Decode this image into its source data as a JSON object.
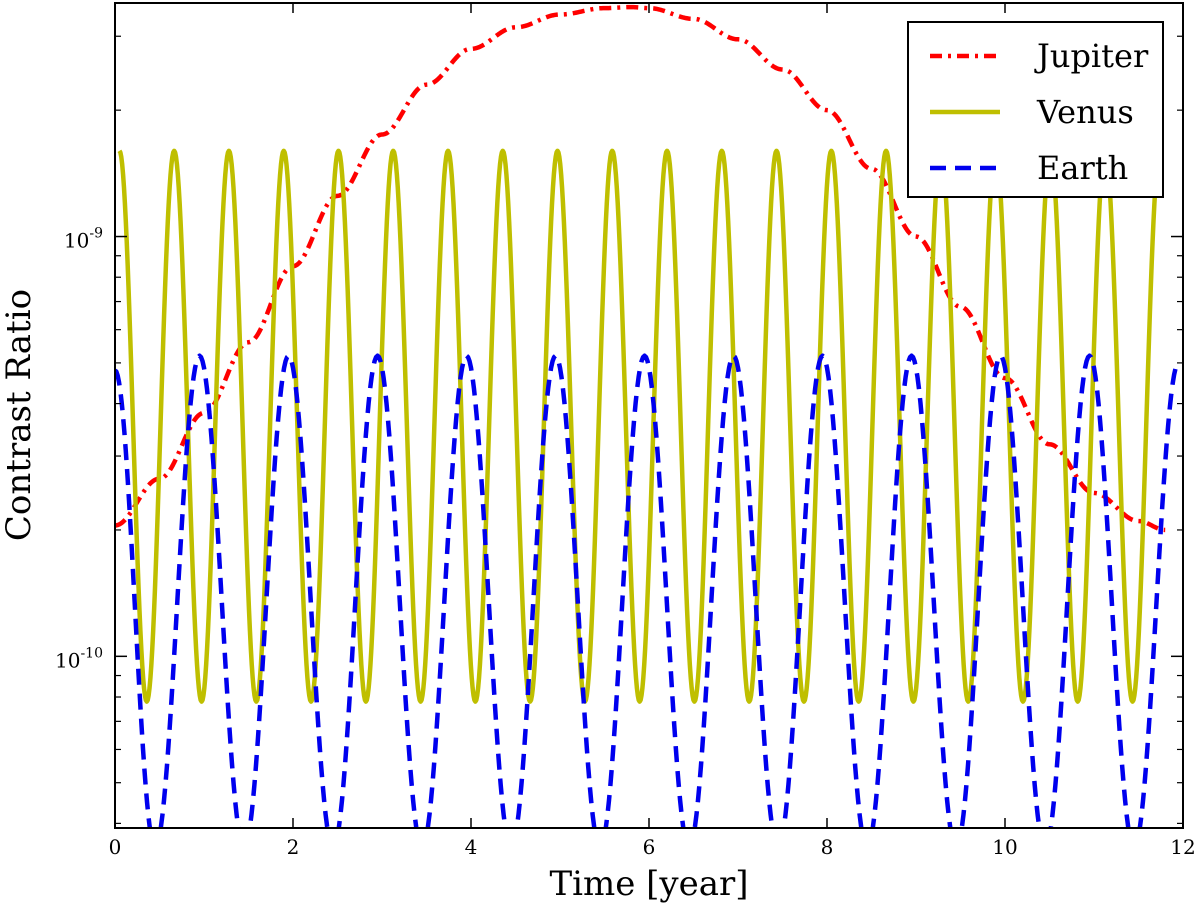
{
  "chart_data": {
    "type": "line",
    "title": "",
    "xlabel": "Time [year]",
    "ylabel": "Contrast Ratio",
    "xlim": [
      0,
      12
    ],
    "ylim": [
      3.9e-11,
      3.6e-09
    ],
    "yscale": "log",
    "grid": false,
    "legend_position": "top-right",
    "x_ticks": [
      {
        "value": 0,
        "label": "0"
      },
      {
        "value": 2,
        "label": "2"
      },
      {
        "value": 4,
        "label": "4"
      },
      {
        "value": 6,
        "label": "6"
      },
      {
        "value": 8,
        "label": "8"
      },
      {
        "value": 10,
        "label": "10"
      },
      {
        "value": 12,
        "label": "12"
      }
    ],
    "y_ticks": [
      {
        "value": 1e-09,
        "base": "10",
        "exponent": "-9"
      },
      {
        "value": 1e-10,
        "base": "10",
        "exponent": "-10"
      }
    ],
    "series": [
      {
        "name": "Jupiter",
        "color": "#ff0000",
        "style": "dash-dot",
        "x": [
          0,
          0.5,
          1,
          1.5,
          2,
          2.5,
          3,
          3.5,
          4,
          4.5,
          5,
          5.5,
          5.8,
          6,
          6.5,
          7,
          7.5,
          8,
          8.5,
          9,
          9.5,
          10,
          10.5,
          11,
          11.5,
          11.8
        ],
        "y": [
          2.05e-10,
          2.65e-10,
          3.8e-10,
          5.6e-10,
          8.5e-10,
          1.25e-09,
          1.75e-09,
          2.3e-09,
          2.8e-09,
          3.15e-09,
          3.38e-09,
          3.5e-09,
          3.52e-09,
          3.5e-09,
          3.3e-09,
          2.95e-09,
          2.5e-09,
          2e-09,
          1.45e-09,
          1e-09,
          6.8e-10,
          4.6e-10,
          3.2e-10,
          2.45e-10,
          2.1e-10,
          2e-10
        ]
      },
      {
        "name": "Venus",
        "color": "#bfbf00",
        "style": "solid",
        "x": [
          0.05,
          0.357,
          0.665,
          0.973,
          1.28,
          1.588,
          1.896,
          2.203,
          2.511,
          2.819,
          3.126,
          3.434,
          3.742,
          4.049,
          4.357,
          4.664,
          4.972,
          5.28,
          5.587,
          5.895,
          6.203,
          6.51,
          6.818,
          7.126,
          7.433,
          7.741,
          8.049,
          8.356,
          8.664,
          8.971,
          9.279,
          9.587,
          9.894,
          10.202,
          10.51,
          10.817,
          11.125,
          11.433,
          11.74
        ],
        "y": [
          1.6e-09,
          7.8e-11,
          1.6e-09,
          7.8e-11,
          1.6e-09,
          7.8e-11,
          1.6e-09,
          7.8e-11,
          1.6e-09,
          7.8e-11,
          1.6e-09,
          7.8e-11,
          1.6e-09,
          7.8e-11,
          1.6e-09,
          7.8e-11,
          1.6e-09,
          7.8e-11,
          1.6e-09,
          7.8e-11,
          1.6e-09,
          7.8e-11,
          1.6e-09,
          7.8e-11,
          1.6e-09,
          7.8e-11,
          1.6e-09,
          7.8e-11,
          1.6e-09,
          7.8e-11,
          1.6e-09,
          7.8e-11,
          1.6e-09,
          7.8e-11,
          1.6e-09,
          7.8e-11,
          1.6e-09,
          7.8e-11,
          1.6e-09
        ]
      },
      {
        "name": "Earth",
        "color": "#0000ee",
        "style": "dashed",
        "x": [
          0,
          0.45,
          0.95,
          1.45,
          1.95,
          2.45,
          2.95,
          3.45,
          3.95,
          4.45,
          4.95,
          5.45,
          5.95,
          6.45,
          6.95,
          7.45,
          7.95,
          8.45,
          8.95,
          9.45,
          9.95,
          10.45,
          10.95,
          11.45,
          11.95
        ],
        "y": [
          4.8e-10,
          3.5e-11,
          5.2e-10,
          3.5e-11,
          5.2e-10,
          3.5e-11,
          5.2e-10,
          3.5e-11,
          5.2e-10,
          3.5e-11,
          5.2e-10,
          3.5e-11,
          5.2e-10,
          3.5e-11,
          5.2e-10,
          3.5e-11,
          5.2e-10,
          3.5e-11,
          5.2e-10,
          3.5e-11,
          5.2e-10,
          3.5e-11,
          5.2e-10,
          3.5e-11,
          5e-10
        ]
      }
    ]
  }
}
